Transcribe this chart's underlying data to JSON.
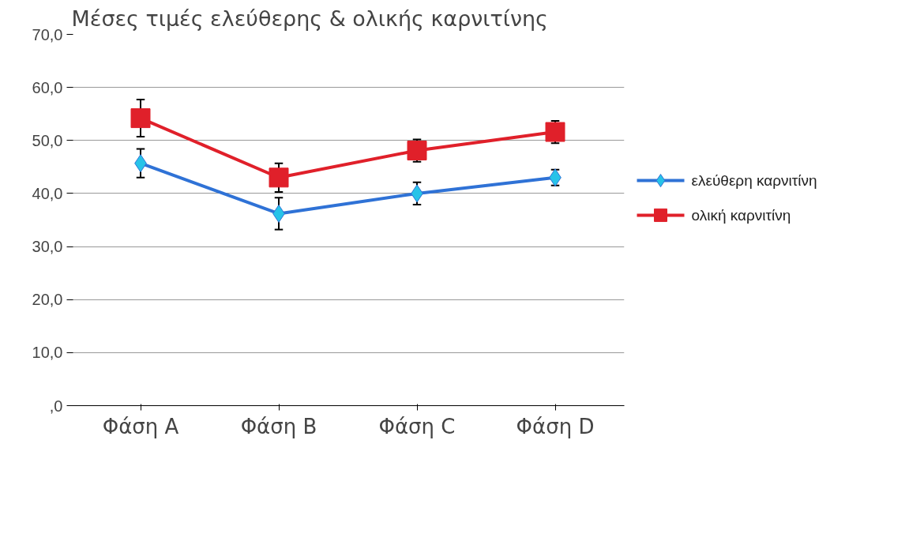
{
  "chart_data": {
    "type": "line",
    "title": "Μέσες τιμές ελεύθερης & ολικής καρνιτίνης",
    "categories": [
      "Φάση A",
      "Φάση B",
      "Φάση C",
      "Φάση D"
    ],
    "series": [
      {
        "name": "ελεύθερη καρνιτίνη",
        "color": "#2f72d6",
        "marker": "diamond",
        "values": [
          45.7,
          36.2,
          40.0,
          43.0
        ],
        "errors": [
          2.7,
          3.0,
          2.1,
          1.5
        ]
      },
      {
        "name": "ολική καρνιτίνη",
        "color": "#e0202a",
        "marker": "square",
        "values": [
          54.2,
          43.0,
          48.1,
          51.6
        ],
        "errors": [
          3.5,
          2.7,
          2.1,
          2.1
        ]
      }
    ],
    "ylim": [
      0,
      70
    ],
    "yticks": [
      {
        "value": 0,
        "label": ",0"
      },
      {
        "value": 10,
        "label": "10,0"
      },
      {
        "value": 20,
        "label": "20,0"
      },
      {
        "value": 30,
        "label": "30,0"
      },
      {
        "value": 40,
        "label": "40,0"
      },
      {
        "value": 50,
        "label": "50,0"
      },
      {
        "value": 60,
        "label": "60,0"
      },
      {
        "value": 70,
        "label": "70,0"
      }
    ],
    "grid": "y",
    "legend": "right",
    "line_style": "solid"
  }
}
